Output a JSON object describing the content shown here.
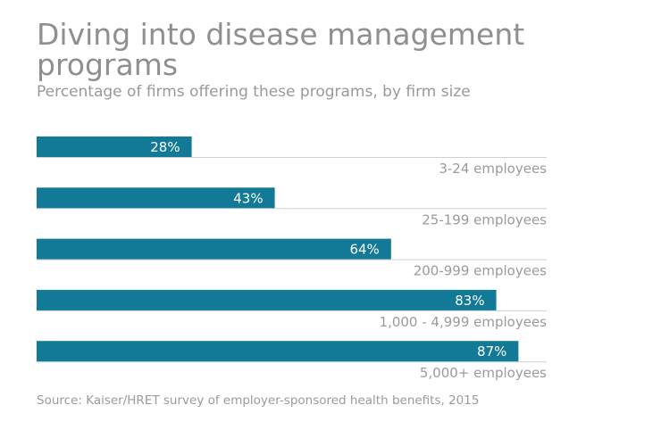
{
  "chart_data": {
    "type": "bar",
    "orientation": "horizontal",
    "title": "Diving into disease management programs",
    "subtitle": "Percentage of firms offering these programs, by firm size",
    "categories": [
      "3-24 employees",
      "25-199 employees",
      "200-999 employees",
      "1,000 - 4,999 employees",
      "5,000+ employees"
    ],
    "values": [
      28,
      43,
      64,
      83,
      87
    ],
    "value_labels": [
      "28%",
      "43%",
      "64%",
      "83%",
      "87%"
    ],
    "xlim": [
      0,
      100
    ],
    "unit": "%",
    "bar_color": "#127a96",
    "source": "Source: Kaiser/HRET survey of employer-sponsored health benefits, 2015"
  }
}
